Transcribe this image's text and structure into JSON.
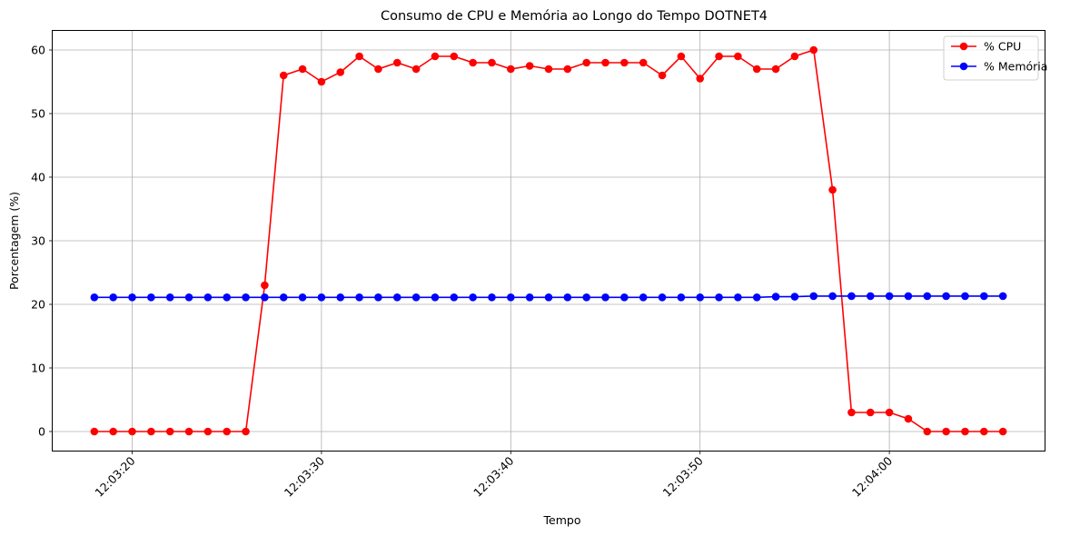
{
  "chart_data": {
    "type": "line",
    "title": "Consumo de CPU e Memória ao Longo do Tempo DOTNET4",
    "xlabel": "Tempo",
    "ylabel": "Porcentagem (%)",
    "grid": true,
    "legend_position": "top-right",
    "ylim": [
      -3,
      63
    ],
    "xlim": [
      "12:03:15.8",
      "12:04:08.2"
    ],
    "yticks": [
      0,
      10,
      20,
      30,
      40,
      50,
      60
    ],
    "xticks": [
      "12:03:20",
      "12:03:30",
      "12:03:40",
      "12:03:50",
      "12:04:00"
    ],
    "x": [
      "12:03:18",
      "12:03:19",
      "12:03:20",
      "12:03:21",
      "12:03:22",
      "12:03:23",
      "12:03:24",
      "12:03:25",
      "12:03:26",
      "12:03:27",
      "12:03:28",
      "12:03:29",
      "12:03:30",
      "12:03:31",
      "12:03:32",
      "12:03:33",
      "12:03:34",
      "12:03:35",
      "12:03:36",
      "12:03:37",
      "12:03:38",
      "12:03:39",
      "12:03:40",
      "12:03:41",
      "12:03:42",
      "12:03:43",
      "12:03:44",
      "12:03:45",
      "12:03:46",
      "12:03:47",
      "12:03:48",
      "12:03:49",
      "12:03:50",
      "12:03:51",
      "12:03:52",
      "12:03:53",
      "12:03:54",
      "12:03:55",
      "12:03:56",
      "12:03:57",
      "12:03:58",
      "12:03:59",
      "12:04:00",
      "12:04:01",
      "12:04:02",
      "12:04:03",
      "12:04:04",
      "12:04:05",
      "12:04:06"
    ],
    "series": [
      {
        "name": "% CPU",
        "color": "#ff0000",
        "values": [
          0,
          0,
          0,
          0,
          0,
          0,
          0,
          0,
          0,
          23,
          56,
          57,
          55,
          56.5,
          59,
          57,
          58,
          57,
          59,
          59,
          58,
          58,
          57,
          57.5,
          57,
          57,
          58,
          58,
          58,
          58,
          56,
          59,
          55.5,
          59,
          59,
          57,
          57,
          59,
          60,
          38,
          3,
          3,
          3,
          2,
          0,
          0,
          0,
          0,
          0
        ]
      },
      {
        "name": "% Memória",
        "color": "#0000ff",
        "values": [
          21.1,
          21.1,
          21.1,
          21.1,
          21.1,
          21.1,
          21.1,
          21.1,
          21.1,
          21.1,
          21.1,
          21.1,
          21.1,
          21.1,
          21.1,
          21.1,
          21.1,
          21.1,
          21.1,
          21.1,
          21.1,
          21.1,
          21.1,
          21.1,
          21.1,
          21.1,
          21.1,
          21.1,
          21.1,
          21.1,
          21.1,
          21.1,
          21.1,
          21.1,
          21.1,
          21.1,
          21.2,
          21.2,
          21.3,
          21.3,
          21.3,
          21.3,
          21.3,
          21.3,
          21.3,
          21.3,
          21.3,
          21.3,
          21.3
        ]
      }
    ]
  }
}
